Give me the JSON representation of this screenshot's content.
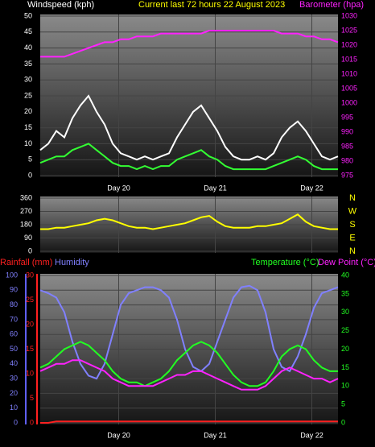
{
  "chart_data": [
    {
      "type": "line",
      "title": "Current last 72 hours 22 August 2023",
      "ylabel": "Windspeed (kph)",
      "y2label": "Barometer (hpa)",
      "x": [
        0,
        2,
        4,
        6,
        8,
        10,
        12,
        14,
        16,
        18,
        20,
        22,
        24,
        26,
        28,
        30,
        32,
        34,
        36,
        38,
        40,
        42,
        44,
        46,
        48,
        50,
        52,
        54,
        56,
        58,
        60,
        62,
        64,
        66,
        68,
        70,
        72,
        74
      ],
      "xlim": [
        0,
        74
      ],
      "xticks": [
        {
          "value": 19.5,
          "label": "Day 20"
        },
        {
          "value": 43.5,
          "label": "Day 21"
        },
        {
          "value": 67.5,
          "label": "Day 22"
        }
      ],
      "ylim": [
        0,
        50
      ],
      "yticks": [
        0,
        5,
        10,
        15,
        20,
        25,
        30,
        35,
        40,
        45,
        50
      ],
      "y2lim": [
        975,
        1030
      ],
      "y2ticks": [
        975,
        980,
        985,
        990,
        995,
        1000,
        1005,
        1010,
        1015,
        1020,
        1025,
        1030
      ],
      "grid": true,
      "series": [
        {
          "color": "#ffffff",
          "values": [
            8,
            10,
            14,
            12,
            18,
            22,
            25,
            20,
            16,
            10,
            7,
            6,
            5,
            6,
            5,
            6,
            7,
            12,
            16,
            20,
            22,
            18,
            14,
            9,
            6,
            5,
            5,
            6,
            5,
            7,
            12,
            15,
            17,
            14,
            10,
            6,
            5,
            6
          ]
        },
        {
          "color": "#33ff33",
          "values": [
            4,
            5,
            6,
            6,
            8,
            9,
            10,
            8,
            6,
            4,
            3,
            3,
            2,
            3,
            2,
            3,
            3,
            5,
            6,
            7,
            8,
            6,
            5,
            3,
            2,
            2,
            2,
            2,
            2,
            3,
            4,
            5,
            6,
            5,
            3,
            2,
            2,
            2
          ]
        },
        {
          "color": "#ff22ff",
          "axis": "y2",
          "values": [
            1016,
            1016,
            1016,
            1016,
            1017,
            1018,
            1019,
            1020,
            1021,
            1021,
            1022,
            1022,
            1023,
            1023,
            1023,
            1024,
            1024,
            1024,
            1024,
            1024,
            1024,
            1025,
            1025,
            1025,
            1025,
            1025,
            1025,
            1025,
            1025,
            1025,
            1024,
            1024,
            1024,
            1023,
            1023,
            1022,
            1022,
            1021
          ]
        }
      ]
    },
    {
      "type": "line",
      "x": [
        0,
        2,
        4,
        6,
        8,
        10,
        12,
        14,
        16,
        18,
        20,
        22,
        24,
        26,
        28,
        30,
        32,
        34,
        36,
        38,
        40,
        42,
        44,
        46,
        48,
        50,
        52,
        54,
        56,
        58,
        60,
        62,
        64,
        66,
        68,
        70,
        72,
        74
      ],
      "xlim": [
        0,
        74
      ],
      "xticks": [
        19.5,
        43.5,
        67.5
      ],
      "ylim": [
        0,
        360
      ],
      "yticks": [
        0,
        90,
        180,
        270,
        360
      ],
      "y2lim": [
        0,
        360
      ],
      "y2ticks": [
        {
          "value": 0,
          "label": "N"
        },
        {
          "value": 90,
          "label": "E"
        },
        {
          "value": 180,
          "label": "S"
        },
        {
          "value": 270,
          "label": "W"
        },
        {
          "value": 360,
          "label": "N"
        }
      ],
      "grid": true,
      "series": [
        {
          "color": "#ffff00",
          "values": [
            150,
            150,
            160,
            160,
            170,
            180,
            190,
            210,
            220,
            210,
            190,
            170,
            160,
            160,
            150,
            160,
            170,
            180,
            190,
            210,
            230,
            240,
            200,
            170,
            160,
            160,
            160,
            170,
            170,
            180,
            190,
            220,
            250,
            200,
            170,
            160,
            150,
            150
          ]
        }
      ]
    },
    {
      "type": "line",
      "x": [
        0,
        2,
        4,
        6,
        8,
        10,
        12,
        14,
        16,
        18,
        20,
        22,
        24,
        26,
        28,
        30,
        32,
        34,
        36,
        38,
        40,
        42,
        44,
        46,
        48,
        50,
        52,
        54,
        56,
        58,
        60,
        62,
        64,
        66,
        68,
        70,
        72,
        74
      ],
      "xlim": [
        0,
        74
      ],
      "xticks": [
        {
          "value": 19.5,
          "label": "Day 20"
        },
        {
          "value": 43.5,
          "label": "Day 21"
        },
        {
          "value": 67.5,
          "label": "Day 22"
        }
      ],
      "ylim": [
        0,
        100
      ],
      "yticks": [
        0,
        10,
        20,
        30,
        40,
        50,
        60,
        70,
        80,
        90,
        100
      ],
      "y2lim": [
        0,
        40
      ],
      "y2ticks": [
        0,
        5,
        10,
        15,
        20,
        25,
        30,
        35,
        40
      ],
      "y3lim": [
        0,
        30
      ],
      "y3ticks": [
        0,
        5,
        10,
        15,
        20,
        25,
        30
      ],
      "grid": true,
      "series": [
        {
          "name": "Rainfall (mm)",
          "color": "#ff2020",
          "axis": "y3",
          "values": [
            0,
            0,
            0.3,
            0.3,
            0.3,
            0.3,
            0.3,
            0.3,
            0.3,
            0.3,
            0.3,
            0.3,
            0.3,
            0.3,
            0.3,
            0.3,
            0.3,
            0.3,
            0.3,
            0.3,
            0.3,
            0.3,
            0.3,
            0.3,
            0.3,
            0.3,
            0.3,
            0.3,
            0.3,
            0.3,
            0.3,
            0.3,
            0.3,
            0.3,
            0.3,
            0.3,
            0.3,
            0.3
          ]
        },
        {
          "name": "Humidity",
          "color": "#8080ff",
          "values": [
            90,
            88,
            85,
            75,
            55,
            40,
            32,
            30,
            40,
            60,
            80,
            88,
            90,
            92,
            92,
            90,
            85,
            70,
            50,
            38,
            35,
            40,
            55,
            70,
            85,
            92,
            93,
            90,
            75,
            50,
            38,
            35,
            45,
            60,
            78,
            88,
            90,
            92
          ]
        },
        {
          "name": "Temperature (°C)",
          "color": "#22ff22",
          "axis": "y2",
          "values": [
            15,
            16,
            18,
            20,
            21,
            22,
            21,
            19,
            17,
            14,
            12,
            11,
            11,
            10,
            11,
            12,
            14,
            17,
            19,
            21,
            22,
            21,
            19,
            16,
            13,
            11,
            10,
            10,
            11,
            14,
            18,
            20,
            21,
            20,
            17,
            15,
            14,
            14
          ]
        },
        {
          "name": "Dew Point (°C)",
          "color": "#ff22ff",
          "axis": "y2",
          "values": [
            14,
            15,
            16,
            16,
            17,
            17,
            16,
            15,
            14,
            12,
            11,
            10,
            10,
            10,
            10,
            11,
            12,
            13,
            13,
            14,
            14,
            13,
            12,
            11,
            10,
            9,
            9,
            9,
            10,
            12,
            14,
            15,
            14,
            13,
            12,
            12,
            11,
            12
          ]
        }
      ]
    }
  ]
}
